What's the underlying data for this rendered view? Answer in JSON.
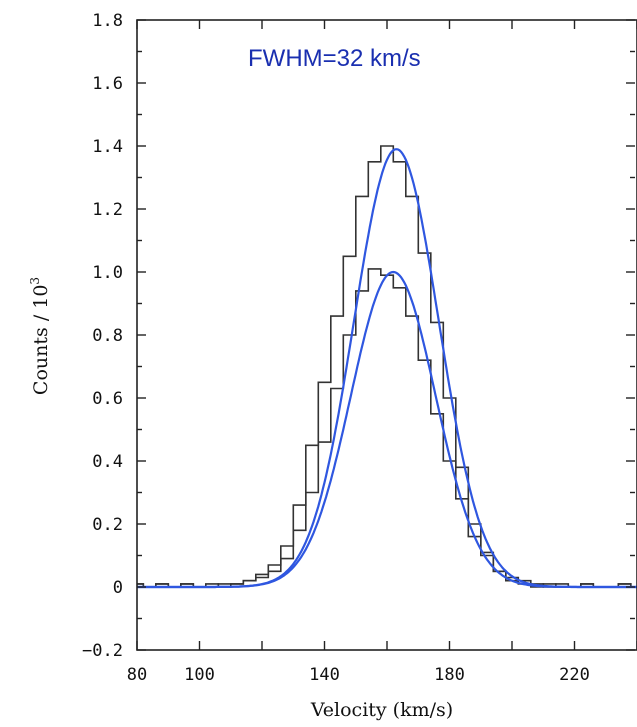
{
  "chart_data": {
    "type": "line",
    "xlabel": "Velocity (km/s)",
    "ylabel": "Counts / 10",
    "ylabel_exponent": "3",
    "annotation": "FWHM=32 km/s",
    "xlim": [
      80,
      240
    ],
    "ylim": [
      -0.2,
      1.8
    ],
    "x_ticks": [
      80,
      100,
      140,
      180,
      220
    ],
    "y_ticks": [
      -0.2,
      0,
      0.2,
      0.4,
      0.6,
      0.8,
      1.0,
      1.2,
      1.4,
      1.6,
      1.8
    ],
    "y_tick_labels": [
      "−0.2",
      "0",
      "0.2",
      "0.4",
      "0.6",
      "0.8",
      "1.0",
      "1.2",
      "1.4",
      "1.6",
      "1.8"
    ],
    "grid": false,
    "histogram_color": "#333333",
    "fit_color": "#2f57e0",
    "series": [
      {
        "kind": "histogram",
        "x": [
          80,
          84,
          88,
          92,
          96,
          100,
          104,
          108,
          112,
          116,
          120,
          124,
          128,
          132,
          136,
          140,
          144,
          148,
          152,
          156,
          160,
          164,
          168,
          172,
          176,
          180,
          184,
          188,
          192,
          196,
          200,
          204,
          208,
          212,
          216,
          220,
          224,
          228,
          232,
          236,
          240
        ],
        "values": [
          0.01,
          0.0,
          0.01,
          0.0,
          0.01,
          0.0,
          0.01,
          0.0,
          0.01,
          0.02,
          0.03,
          0.05,
          0.09,
          0.18,
          0.3,
          0.46,
          0.63,
          0.8,
          0.94,
          1.01,
          0.99,
          0.95,
          0.86,
          0.72,
          0.55,
          0.4,
          0.28,
          0.16,
          0.1,
          0.05,
          0.03,
          0.02,
          0.01,
          0.0,
          0.01,
          0.0,
          0.01,
          0.0,
          0.0,
          0.01,
          0.0
        ]
      },
      {
        "kind": "histogram",
        "x": [
          80,
          84,
          88,
          92,
          96,
          100,
          104,
          108,
          112,
          116,
          120,
          124,
          128,
          132,
          136,
          140,
          144,
          148,
          152,
          156,
          160,
          164,
          168,
          172,
          176,
          180,
          184,
          188,
          192,
          196,
          200,
          204,
          208,
          212,
          216,
          220,
          224,
          228,
          232,
          236,
          240
        ],
        "values": [
          0.01,
          0.0,
          0.01,
          0.0,
          0.01,
          0.0,
          0.0,
          0.01,
          0.01,
          0.02,
          0.04,
          0.07,
          0.13,
          0.26,
          0.45,
          0.65,
          0.86,
          1.05,
          1.24,
          1.35,
          1.4,
          1.35,
          1.24,
          1.06,
          0.84,
          0.6,
          0.38,
          0.2,
          0.11,
          0.05,
          0.02,
          0.01,
          0.0,
          0.01,
          0.0,
          0.0,
          0.01,
          0.0,
          0.0,
          0.01,
          0.0
        ]
      },
      {
        "kind": "gaussian_fit",
        "amplitude": 1.0,
        "center": 162,
        "fwhm": 32
      },
      {
        "kind": "gaussian_fit",
        "amplitude": 1.39,
        "center": 163,
        "fwhm": 32
      }
    ]
  }
}
